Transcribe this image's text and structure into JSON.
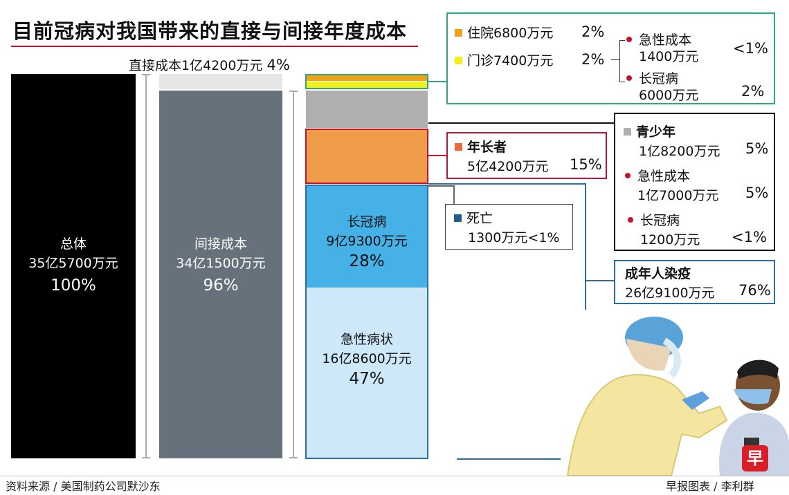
{
  "title": "目前冠病对我国带来的直接与间接年度成本",
  "colors": {
    "total": "#000000",
    "indirect": "#66717b",
    "direct": "#e6e6e6",
    "hospitalization": "#f0a31a",
    "outpatient": "#f2ef1a",
    "youth": "#b0b0b0",
    "elderly": "#ef9d4a",
    "long_covid": "#45b1e6",
    "acute": "#cde8f8",
    "death": "#1f5e8e",
    "accent_red": "#c8102e",
    "accent_teal": "#2aa77e",
    "accent_blue": "#2b6ea6"
  },
  "bars": {
    "total": {
      "label": "总体",
      "value_text": "35亿5700万元",
      "pct": "100%"
    },
    "indirect": {
      "label": "间接成本",
      "value_text": "34亿1500万元",
      "pct": "96%"
    },
    "direct_label": "直接成本1亿4200万元",
    "direct_pct": "4%",
    "long_covid": {
      "label": "长冠病",
      "value_text": "9亿9300万元",
      "pct": "28%"
    },
    "acute": {
      "label": "急性病状",
      "value_text": "16亿8600万元",
      "pct": "47%"
    }
  },
  "direct_box": {
    "hospital_label": "住院6800万元",
    "hospital_pct": "2%",
    "outpatient_label": "门诊7400万元",
    "outpatient_pct": "2%",
    "acute_label_1": "急性成本",
    "acute_label_2": "1400万元",
    "acute_pct": "<1%",
    "long_label_1": "长冠病",
    "long_label_2": "6000万元",
    "long_pct": "2%"
  },
  "elderly_box": {
    "label": "年长者",
    "value": "5亿4200万元",
    "pct": "15%"
  },
  "youth_box": {
    "label": "青少年",
    "value": "1亿8200万元",
    "pct": "5%",
    "acute_label_1": "急性成本",
    "acute_label_2": "1亿7000万元",
    "acute_pct": "5%",
    "long_label_1": "长冠病",
    "long_label_2": "1200万元",
    "long_pct": "<1%"
  },
  "death_box": {
    "label": "死亡",
    "value": "1300万元",
    "pct": "<1%"
  },
  "adult_box": {
    "label": "成年人染疫",
    "value": "26亿9100万元",
    "pct": "76%"
  },
  "footer": {
    "source": "资料来源 / 美国制药公司默沙东",
    "credit": "早报图表 / 李利群",
    "logo_char": "早"
  },
  "chart_data": {
    "type": "bar",
    "title": "目前冠病对我国带来的直接与间接年度成本",
    "unit": "万元",
    "categories": [
      "总体",
      "间接成本",
      "直接成本",
      "住院",
      "门诊",
      "青少年",
      "年长者",
      "长冠病",
      "急性病状",
      "死亡",
      "成年人染疫"
    ],
    "values": [
      355700,
      341500,
      14200,
      6800,
      7400,
      18200,
      54200,
      99300,
      168600,
      1300,
      269100
    ],
    "percentages": [
      "100%",
      "96%",
      "4%",
      "2%",
      "2%",
      "5%",
      "15%",
      "28%",
      "47%",
      "<1%",
      "76%"
    ],
    "sub_breakdown": {
      "直接成本": {
        "急性成本": 1400,
        "长冠病": 6000
      },
      "青少年": {
        "急性成本": 17000,
        "长冠病": 1200
      }
    }
  }
}
